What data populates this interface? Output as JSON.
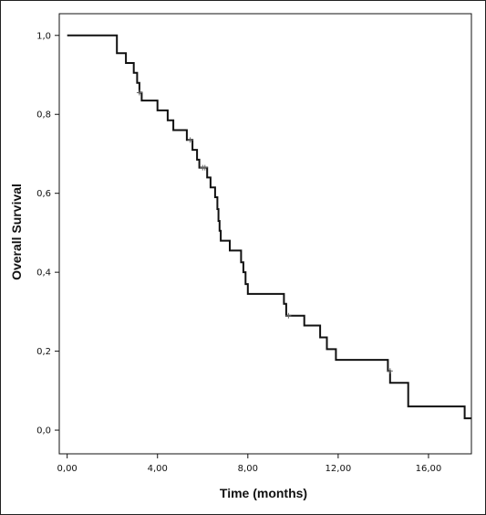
{
  "chart_data": {
    "type": "line",
    "step": true,
    "title": "",
    "xlabel": "Time (months)",
    "ylabel": "Overall Survival",
    "xlim": [
      -0.35,
      17.9
    ],
    "ylim": [
      -0.06,
      1.055
    ],
    "x_ticks": [
      0,
      4,
      8,
      12,
      16
    ],
    "x_tick_labels": [
      "0,00",
      "4,00",
      "8,00",
      "12,00",
      "16,00"
    ],
    "y_ticks": [
      0.0,
      0.2,
      0.4,
      0.6,
      0.8,
      1.0
    ],
    "y_tick_labels": [
      "0,0",
      "0,2",
      "0,4",
      "0,6",
      "0,8",
      "1,0"
    ],
    "grid": false,
    "legend": "none",
    "line_color": "#111111",
    "series": [
      {
        "points": [
          [
            0.0,
            1.0
          ],
          [
            2.2,
            1.0
          ],
          [
            2.2,
            0.955
          ],
          [
            2.6,
            0.955
          ],
          [
            2.6,
            0.93
          ],
          [
            2.95,
            0.93
          ],
          [
            2.95,
            0.905
          ],
          [
            3.1,
            0.905
          ],
          [
            3.1,
            0.88
          ],
          [
            3.2,
            0.88
          ],
          [
            3.2,
            0.855
          ],
          [
            3.3,
            0.855
          ],
          [
            3.3,
            0.835
          ],
          [
            4.0,
            0.835
          ],
          [
            4.0,
            0.81
          ],
          [
            4.45,
            0.81
          ],
          [
            4.45,
            0.785
          ],
          [
            4.7,
            0.785
          ],
          [
            4.7,
            0.76
          ],
          [
            5.3,
            0.76
          ],
          [
            5.3,
            0.735
          ],
          [
            5.55,
            0.735
          ],
          [
            5.55,
            0.71
          ],
          [
            5.75,
            0.71
          ],
          [
            5.75,
            0.685
          ],
          [
            5.85,
            0.685
          ],
          [
            5.85,
            0.665
          ],
          [
            6.2,
            0.665
          ],
          [
            6.2,
            0.64
          ],
          [
            6.35,
            0.64
          ],
          [
            6.35,
            0.615
          ],
          [
            6.55,
            0.615
          ],
          [
            6.55,
            0.59
          ],
          [
            6.65,
            0.59
          ],
          [
            6.65,
            0.56
          ],
          [
            6.7,
            0.56
          ],
          [
            6.7,
            0.53
          ],
          [
            6.75,
            0.53
          ],
          [
            6.75,
            0.505
          ],
          [
            6.8,
            0.505
          ],
          [
            6.8,
            0.48
          ],
          [
            7.2,
            0.48
          ],
          [
            7.2,
            0.455
          ],
          [
            7.7,
            0.455
          ],
          [
            7.7,
            0.425
          ],
          [
            7.8,
            0.425
          ],
          [
            7.8,
            0.4
          ],
          [
            7.9,
            0.4
          ],
          [
            7.9,
            0.37
          ],
          [
            8.0,
            0.37
          ],
          [
            8.0,
            0.345
          ],
          [
            9.6,
            0.345
          ],
          [
            9.6,
            0.32
          ],
          [
            9.7,
            0.32
          ],
          [
            9.7,
            0.29
          ],
          [
            10.5,
            0.29
          ],
          [
            10.5,
            0.265
          ],
          [
            11.2,
            0.265
          ],
          [
            11.2,
            0.235
          ],
          [
            11.5,
            0.235
          ],
          [
            11.5,
            0.205
          ],
          [
            11.9,
            0.205
          ],
          [
            11.9,
            0.178
          ],
          [
            14.2,
            0.178
          ],
          [
            14.2,
            0.15
          ],
          [
            14.3,
            0.15
          ],
          [
            14.3,
            0.12
          ],
          [
            15.1,
            0.12
          ],
          [
            15.1,
            0.06
          ],
          [
            17.6,
            0.06
          ],
          [
            17.6,
            0.03
          ],
          [
            17.9,
            0.03
          ]
        ]
      }
    ],
    "censored": [
      [
        3.2,
        0.855
      ],
      [
        5.45,
        0.735
      ],
      [
        6.0,
        0.665
      ],
      [
        6.1,
        0.665
      ],
      [
        9.8,
        0.29
      ],
      [
        14.3,
        0.15
      ]
    ]
  }
}
